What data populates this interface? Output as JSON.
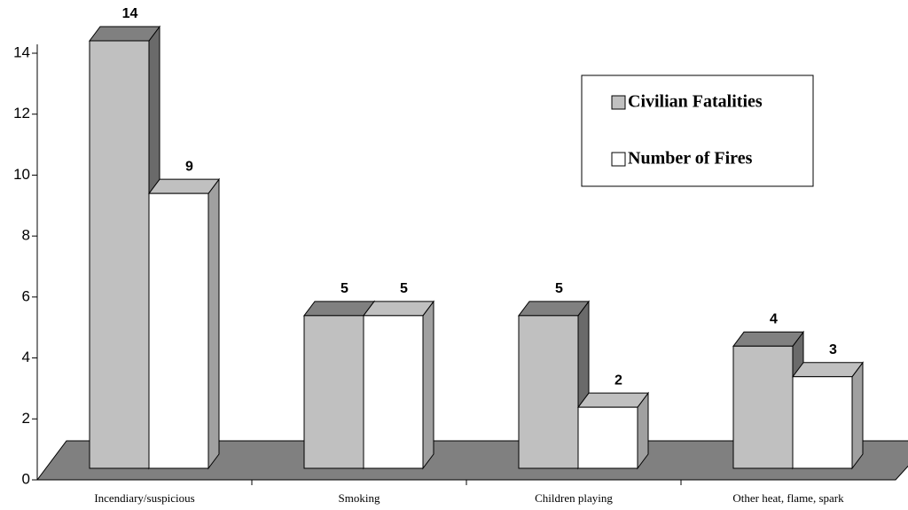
{
  "chart_data": {
    "type": "bar3d",
    "categories": [
      "Incendiary/suspicious",
      "Smoking",
      "Children playing",
      "Other heat, flame, spark"
    ],
    "series": [
      {
        "name": "Civilian Fatalities",
        "color": "#c0c0c0",
        "values": [
          14,
          5,
          5,
          4
        ]
      },
      {
        "name": "Number of Fires",
        "color": "#ffffff",
        "values": [
          9,
          5,
          2,
          3
        ]
      }
    ],
    "ylim": [
      0,
      14
    ],
    "yticks": [
      0,
      2,
      4,
      6,
      8,
      10,
      12,
      14
    ],
    "floor_color": "#808080",
    "legend": "upper right"
  }
}
